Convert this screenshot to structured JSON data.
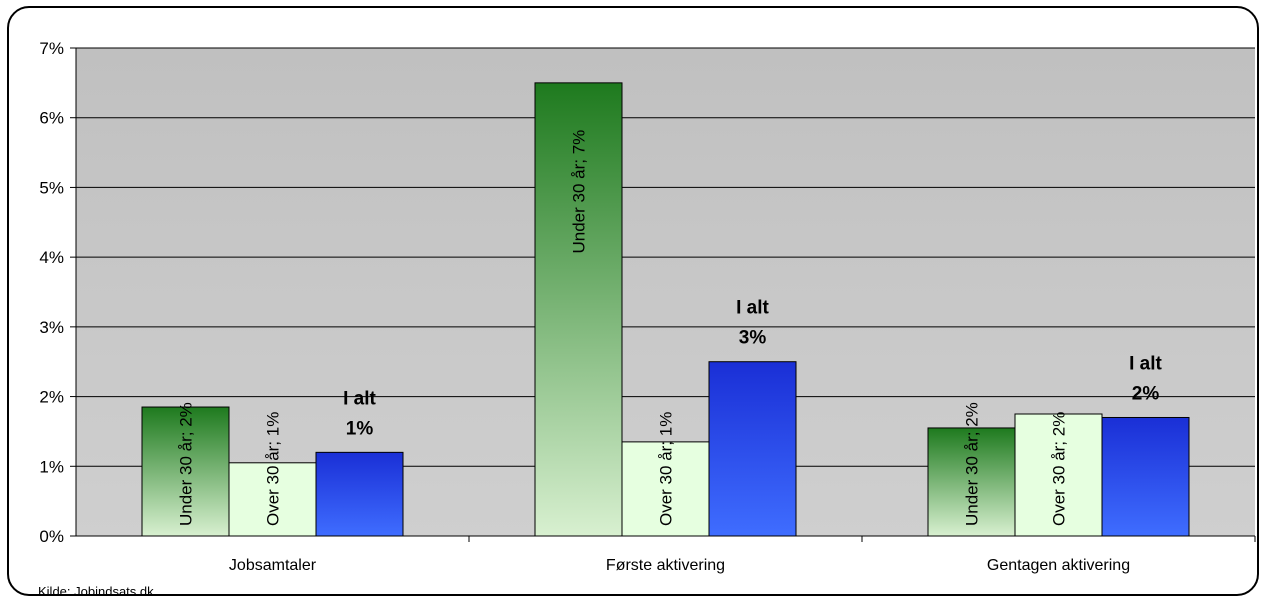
{
  "source": "Kilde: Jobindsats.dk",
  "colors": {
    "plot_bg_top": "#c0c0c0",
    "plot_bg_bottom": "#cfcfcf",
    "under30_top": "#1e7a1e",
    "under30_bottom": "#d8f0d0",
    "over30": "#e6ffe0",
    "ialt_top": "#1a2fd6",
    "ialt_bottom": "#3f6dff"
  },
  "chart_data": {
    "type": "bar",
    "categories": [
      "Jobsamtaler",
      "Første aktivering",
      "Gentagen aktivering"
    ],
    "ylim": [
      0,
      7
    ],
    "yticks": [
      "0%",
      "1%",
      "2%",
      "3%",
      "4%",
      "5%",
      "6%",
      "7%"
    ],
    "grid": true,
    "series": [
      {
        "key": "under30",
        "values": [
          1.85,
          6.5,
          1.55
        ],
        "labels": [
          "Under 30 år; 2%",
          "Under 30 år; 7%",
          "Under 30 år; 2%"
        ]
      },
      {
        "key": "over30",
        "values": [
          1.05,
          1.35,
          1.75
        ],
        "labels": [
          "Over 30 år; 1%",
          "Over 30 år; 1%",
          "Over 30 år; 2%"
        ]
      },
      {
        "key": "ialt",
        "values": [
          1.2,
          2.5,
          1.7
        ],
        "labels": [
          [
            "I alt",
            "1%"
          ],
          [
            "I alt",
            "3%"
          ],
          [
            "I alt",
            "2%"
          ]
        ]
      }
    ]
  }
}
